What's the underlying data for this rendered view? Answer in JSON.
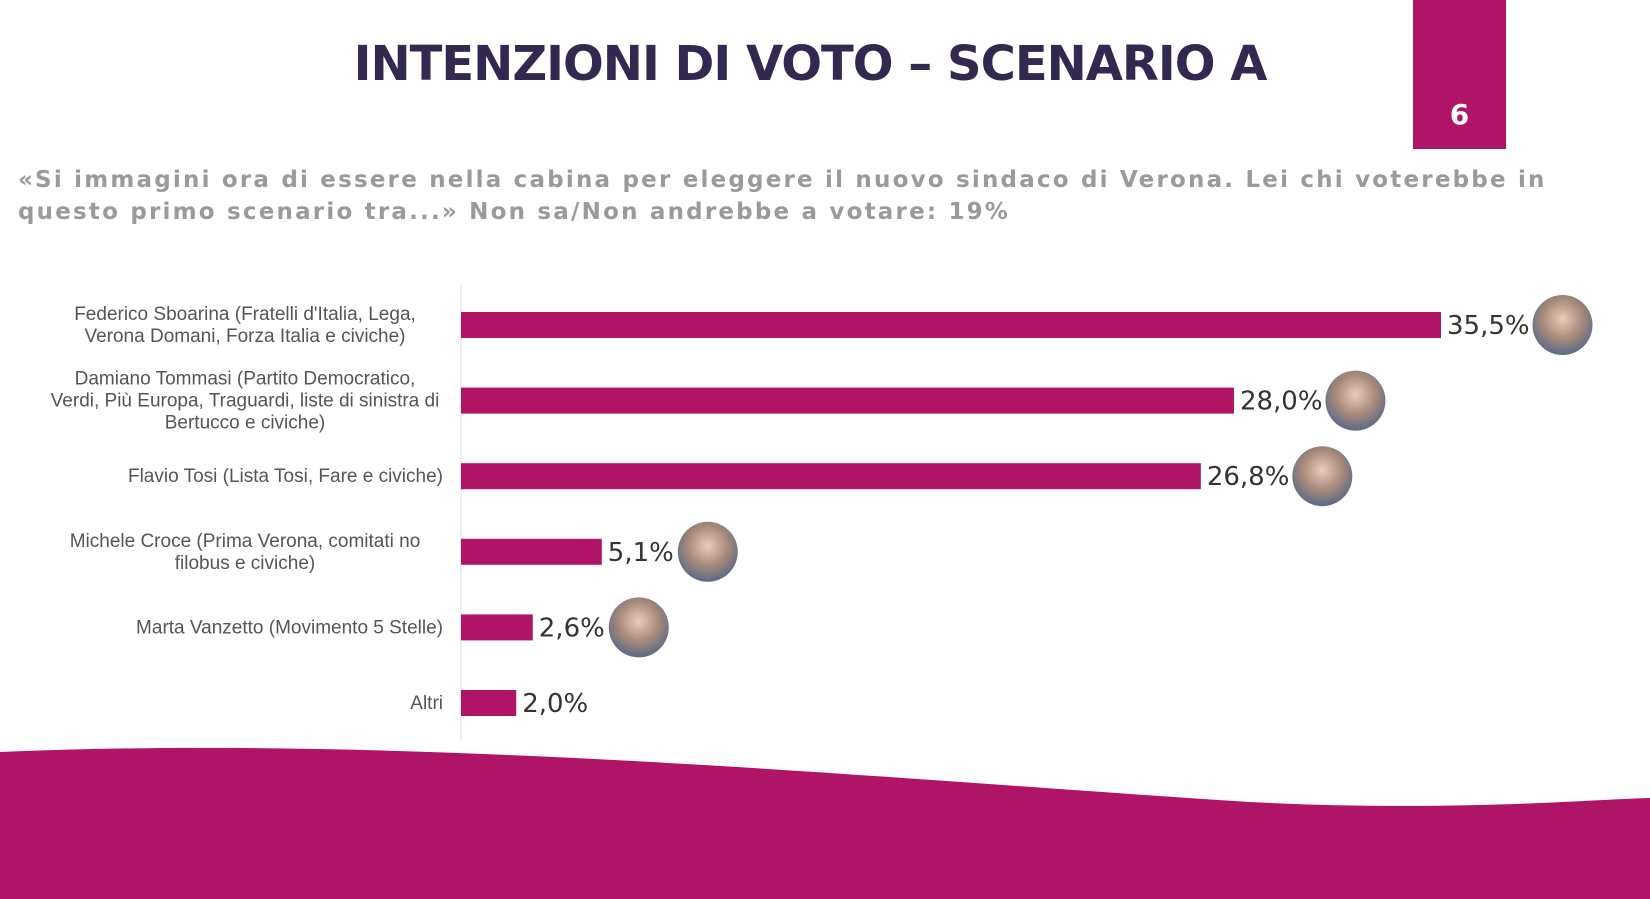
{
  "title": "INTENZIONI DI VOTO – SCENARIO A",
  "page_number": "6",
  "question": "«Si immagini ora di essere nella cabina per eleggere il nuovo sindaco di Verona. Lei chi voterebbe in questo primo scenario tra...» Non sa/Non andrebbe a votare: 19%",
  "colors": {
    "accent": "#b01466",
    "title": "#33284f",
    "question": "#9a9a9a"
  },
  "chart_data": {
    "type": "bar",
    "orientation": "horizontal",
    "categories": [
      [
        "Federico Sboarina (Fratelli d'Italia, Lega,",
        "Verona Domani, Forza Italia e civiche)"
      ],
      [
        "Damiano Tommasi (Partito Democratico,",
        "Verdi, Più Europa, Traguardi, liste di sinistra di",
        "Bertucco e civiche)"
      ],
      [
        "Flavio Tosi (Lista Tosi, Fare e  civiche)"
      ],
      [
        "Michele Croce (Prima Verona, comitati no",
        "filobus e civiche)"
      ],
      [
        "Marta Vanzetto (Movimento 5 Stelle)"
      ],
      [
        "Altri"
      ]
    ],
    "values": [
      35.5,
      28.0,
      26.8,
      5.1,
      2.6,
      2.0
    ],
    "value_labels": [
      "35,5%",
      "28,0%",
      "26,8%",
      "5,1%",
      "2,6%",
      "2,0%"
    ],
    "photos": [
      "candidate-photo-sboarina",
      "candidate-photo-tommasi",
      "candidate-photo-tosi",
      "candidate-photo-croce",
      "candidate-photo-vanzetto",
      null
    ],
    "grid": false,
    "legend": "none"
  }
}
